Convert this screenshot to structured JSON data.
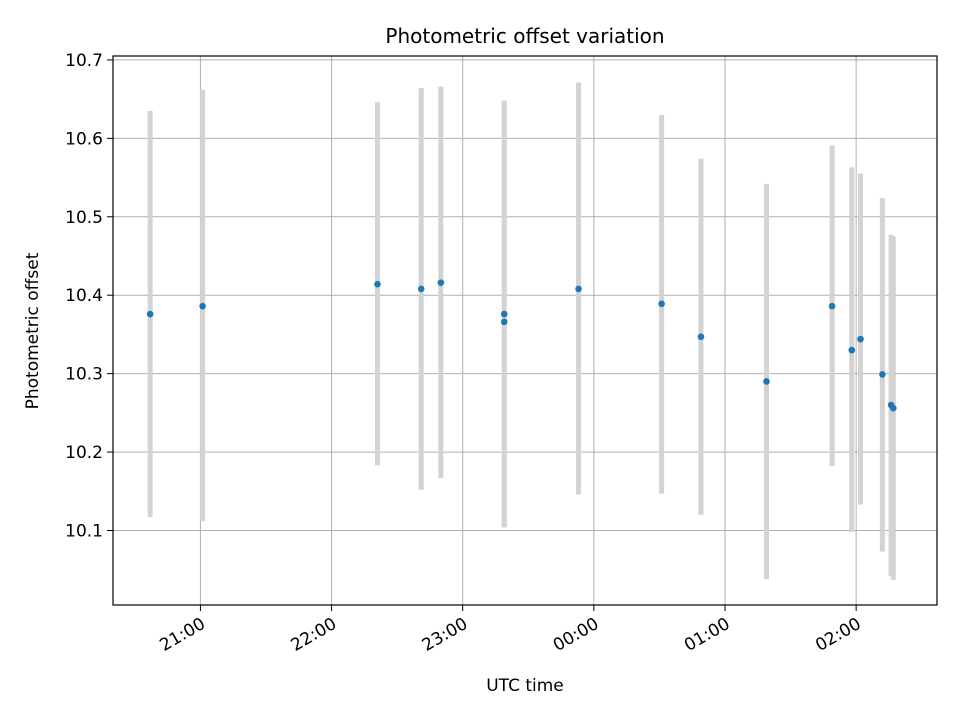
{
  "chart_data": {
    "type": "scatter",
    "title": "Photometric offset variation",
    "xlabel": "UTC time",
    "ylabel": "Photometric offset",
    "xlim": [
      "2000-01-01 20:20",
      "2000-01-02 02:37"
    ],
    "ylim": [
      10.005,
      10.705
    ],
    "x_ticks": [
      "21:00",
      "22:00",
      "23:00",
      "00:00",
      "01:00",
      "02:00"
    ],
    "y_ticks": [
      10.1,
      10.2,
      10.3,
      10.4,
      10.5,
      10.6,
      10.7
    ],
    "y_tick_labels": [
      "10.1",
      "10.2",
      "10.3",
      "10.4",
      "10.5",
      "10.6",
      "10.7"
    ],
    "grid": true,
    "errorbar_color": "#d3d3d3",
    "marker_color": "#1f77b4",
    "points": [
      {
        "time": "2000-01-01 20:37",
        "value": 10.376,
        "low": 10.117,
        "high": 10.635
      },
      {
        "time": "2000-01-01 21:01",
        "value": 10.386,
        "low": 10.112,
        "high": 10.662
      },
      {
        "time": "2000-01-01 22:21",
        "value": 10.414,
        "low": 10.183,
        "high": 10.646
      },
      {
        "time": "2000-01-01 22:41",
        "value": 10.408,
        "low": 10.152,
        "high": 10.664
      },
      {
        "time": "2000-01-01 22:50",
        "value": 10.416,
        "low": 10.167,
        "high": 10.666
      },
      {
        "time": "2000-01-01 23:19",
        "value": 10.376,
        "low": 10.104,
        "high": 10.648
      },
      {
        "time": "2000-01-01 23:19",
        "value": 10.366,
        "low": 10.104,
        "high": 10.648
      },
      {
        "time": "2000-01-01 23:53",
        "value": 10.408,
        "low": 10.146,
        "high": 10.671
      },
      {
        "time": "2000-01-02 00:31",
        "value": 10.389,
        "low": 10.147,
        "high": 10.63
      },
      {
        "time": "2000-01-02 00:49",
        "value": 10.347,
        "low": 10.12,
        "high": 10.574
      },
      {
        "time": "2000-01-02 01:19",
        "value": 10.29,
        "low": 10.038,
        "high": 10.542
      },
      {
        "time": "2000-01-02 01:49",
        "value": 10.386,
        "low": 10.182,
        "high": 10.591
      },
      {
        "time": "2000-01-02 01:58",
        "value": 10.33,
        "low": 10.098,
        "high": 10.563
      },
      {
        "time": "2000-01-02 02:02",
        "value": 10.344,
        "low": 10.133,
        "high": 10.555
      },
      {
        "time": "2000-01-02 02:12",
        "value": 10.299,
        "low": 10.073,
        "high": 10.524
      },
      {
        "time": "2000-01-02 02:16",
        "value": 10.26,
        "low": 10.042,
        "high": 10.477
      },
      {
        "time": "2000-01-02 02:17",
        "value": 10.256,
        "low": 10.037,
        "high": 10.475
      }
    ]
  }
}
